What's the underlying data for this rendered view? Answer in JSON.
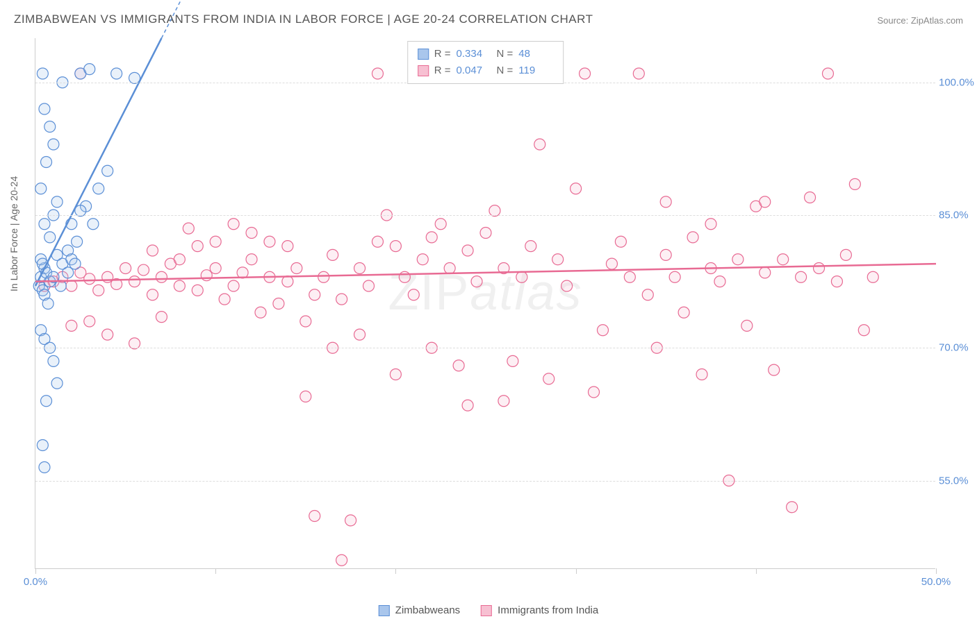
{
  "title": "ZIMBABWEAN VS IMMIGRANTS FROM INDIA IN LABOR FORCE | AGE 20-24 CORRELATION CHART",
  "source": "Source: ZipAtlas.com",
  "watermark_a": "ZIP",
  "watermark_b": "atlas",
  "ylabel": "In Labor Force | Age 20-24",
  "chart": {
    "type": "scatter",
    "xlim": [
      0,
      50
    ],
    "ylim": [
      45,
      105
    ],
    "x_ticks": [
      0,
      10,
      20,
      30,
      40,
      50
    ],
    "x_tick_labels": [
      "0.0%",
      "",
      "",
      "",
      "",
      "50.0%"
    ],
    "y_gridlines": [
      55,
      70,
      85,
      100
    ],
    "y_tick_labels": [
      "55.0%",
      "70.0%",
      "85.0%",
      "100.0%"
    ],
    "background_color": "#ffffff",
    "grid_color": "#dddddd",
    "marker_radius": 8,
    "marker_stroke_width": 1.2,
    "marker_fill_opacity": 0.25,
    "series": [
      {
        "name": "Zimbabweans",
        "color_stroke": "#5b8fd6",
        "color_fill": "#a9c6ec",
        "R": "0.334",
        "N": "48",
        "trend": {
          "x1": 0,
          "y1": 77,
          "x2": 7,
          "y2": 105,
          "dashed_extend_x": 10
        },
        "points": [
          [
            0.2,
            77
          ],
          [
            0.3,
            78
          ],
          [
            0.4,
            76.5
          ],
          [
            0.5,
            79
          ],
          [
            0.3,
            80
          ],
          [
            0.6,
            78.5
          ],
          [
            0.8,
            77.5
          ],
          [
            0.5,
            76
          ],
          [
            0.4,
            79.5
          ],
          [
            1.0,
            78
          ],
          [
            1.2,
            80.5
          ],
          [
            1.5,
            79.5
          ],
          [
            1.8,
            81
          ],
          [
            2.0,
            80
          ],
          [
            2.3,
            82
          ],
          [
            0.8,
            82.5
          ],
          [
            0.5,
            84
          ],
          [
            1.0,
            85
          ],
          [
            1.2,
            86.5
          ],
          [
            0.3,
            88
          ],
          [
            0.6,
            91
          ],
          [
            1.0,
            93
          ],
          [
            0.8,
            95
          ],
          [
            0.5,
            97
          ],
          [
            1.5,
            100
          ],
          [
            2.5,
            101
          ],
          [
            3.0,
            101.5
          ],
          [
            4.5,
            101
          ],
          [
            0.4,
            101
          ],
          [
            5.5,
            100.5
          ],
          [
            2.8,
            86
          ],
          [
            3.5,
            88
          ],
          [
            4.0,
            90
          ],
          [
            0.3,
            72
          ],
          [
            0.5,
            71
          ],
          [
            0.8,
            70
          ],
          [
            1.0,
            68.5
          ],
          [
            1.2,
            66
          ],
          [
            0.6,
            64
          ],
          [
            0.4,
            59
          ],
          [
            0.5,
            56.5
          ],
          [
            2.0,
            84
          ],
          [
            2.5,
            85.5
          ],
          [
            3.2,
            84
          ],
          [
            0.7,
            75
          ],
          [
            1.4,
            77
          ],
          [
            1.8,
            78.5
          ],
          [
            2.2,
            79.5
          ]
        ]
      },
      {
        "name": "Immigrants from India",
        "color_stroke": "#e86a93",
        "color_fill": "#f7c0d2",
        "R": "0.047",
        "N": "119",
        "trend": {
          "x1": 0,
          "y1": 77.5,
          "x2": 50,
          "y2": 79.5
        },
        "points": [
          [
            0.5,
            77
          ],
          [
            1.0,
            77.5
          ],
          [
            1.5,
            78
          ],
          [
            2.0,
            77
          ],
          [
            2.5,
            78.5
          ],
          [
            3.0,
            77.8
          ],
          [
            3.5,
            76.5
          ],
          [
            4.0,
            78
          ],
          [
            4.5,
            77.2
          ],
          [
            5.0,
            79
          ],
          [
            5.5,
            77.5
          ],
          [
            6.0,
            78.8
          ],
          [
            6.5,
            76
          ],
          [
            7.0,
            78
          ],
          [
            7.5,
            79.5
          ],
          [
            8.0,
            77
          ],
          [
            8.5,
            83.5
          ],
          [
            9.0,
            76.5
          ],
          [
            9.5,
            78.2
          ],
          [
            10,
            79
          ],
          [
            10.5,
            75.5
          ],
          [
            11,
            77
          ],
          [
            11.5,
            78.5
          ],
          [
            12,
            80
          ],
          [
            12.5,
            74
          ],
          [
            13,
            78
          ],
          [
            13.5,
            75
          ],
          [
            14,
            77.5
          ],
          [
            14.5,
            79
          ],
          [
            15,
            73
          ],
          [
            15.5,
            76
          ],
          [
            16,
            78
          ],
          [
            16.5,
            80.5
          ],
          [
            17,
            75.5
          ],
          [
            17.5,
            50.5
          ],
          [
            18,
            79
          ],
          [
            18.5,
            77
          ],
          [
            19,
            82
          ],
          [
            19.5,
            85
          ],
          [
            20,
            81.5
          ],
          [
            20.5,
            78
          ],
          [
            21,
            76
          ],
          [
            21.5,
            80
          ],
          [
            22,
            82.5
          ],
          [
            22.5,
            84
          ],
          [
            23,
            79
          ],
          [
            23.5,
            68
          ],
          [
            24,
            81
          ],
          [
            24.5,
            77.5
          ],
          [
            25,
            83
          ],
          [
            25.5,
            85.5
          ],
          [
            26,
            79
          ],
          [
            26.5,
            68.5
          ],
          [
            27,
            78
          ],
          [
            27.5,
            81.5
          ],
          [
            28,
            93
          ],
          [
            28.5,
            66.5
          ],
          [
            29,
            80
          ],
          [
            29.5,
            77
          ],
          [
            30,
            88
          ],
          [
            30.5,
            101
          ],
          [
            31,
            65
          ],
          [
            31.5,
            72
          ],
          [
            32,
            79.5
          ],
          [
            32.5,
            82
          ],
          [
            33,
            78
          ],
          [
            33.5,
            101
          ],
          [
            34,
            76
          ],
          [
            34.5,
            70
          ],
          [
            35,
            80.5
          ],
          [
            35.5,
            78
          ],
          [
            36,
            74
          ],
          [
            36.5,
            82.5
          ],
          [
            37,
            67
          ],
          [
            37.5,
            79
          ],
          [
            38,
            77.5
          ],
          [
            38.5,
            55
          ],
          [
            39,
            80
          ],
          [
            39.5,
            72.5
          ],
          [
            40,
            86
          ],
          [
            40.5,
            78.5
          ],
          [
            41,
            67.5
          ],
          [
            41.5,
            80
          ],
          [
            42,
            52
          ],
          [
            42.5,
            78
          ],
          [
            43,
            87
          ],
          [
            43.5,
            79
          ],
          [
            44,
            101
          ],
          [
            44.5,
            77.5
          ],
          [
            45,
            80.5
          ],
          [
            45.5,
            88.5
          ],
          [
            46,
            72
          ],
          [
            46.5,
            78
          ],
          [
            2.0,
            72.5
          ],
          [
            3.0,
            73
          ],
          [
            4.0,
            71.5
          ],
          [
            5.5,
            70.5
          ],
          [
            7.0,
            73.5
          ],
          [
            9.0,
            81.5
          ],
          [
            11,
            84
          ],
          [
            13,
            82
          ],
          [
            15,
            64.5
          ],
          [
            17,
            46
          ],
          [
            6.5,
            81
          ],
          [
            8.0,
            80
          ],
          [
            10,
            82
          ],
          [
            12,
            83
          ],
          [
            14,
            81.5
          ],
          [
            16.5,
            70
          ],
          [
            18,
            71.5
          ],
          [
            20,
            67
          ],
          [
            22,
            70
          ],
          [
            24,
            63.5
          ],
          [
            26,
            64
          ],
          [
            15.5,
            51
          ],
          [
            35,
            86.5
          ],
          [
            37.5,
            84
          ],
          [
            40.5,
            86.5
          ],
          [
            2.5,
            101
          ],
          [
            19,
            101
          ]
        ]
      }
    ]
  },
  "legend_bottom": [
    {
      "label": "Zimbabweans",
      "swatch_fill": "#a9c6ec",
      "swatch_stroke": "#5b8fd6"
    },
    {
      "label": "Immigrants from India",
      "swatch_fill": "#f7c0d2",
      "swatch_stroke": "#e86a93"
    }
  ]
}
